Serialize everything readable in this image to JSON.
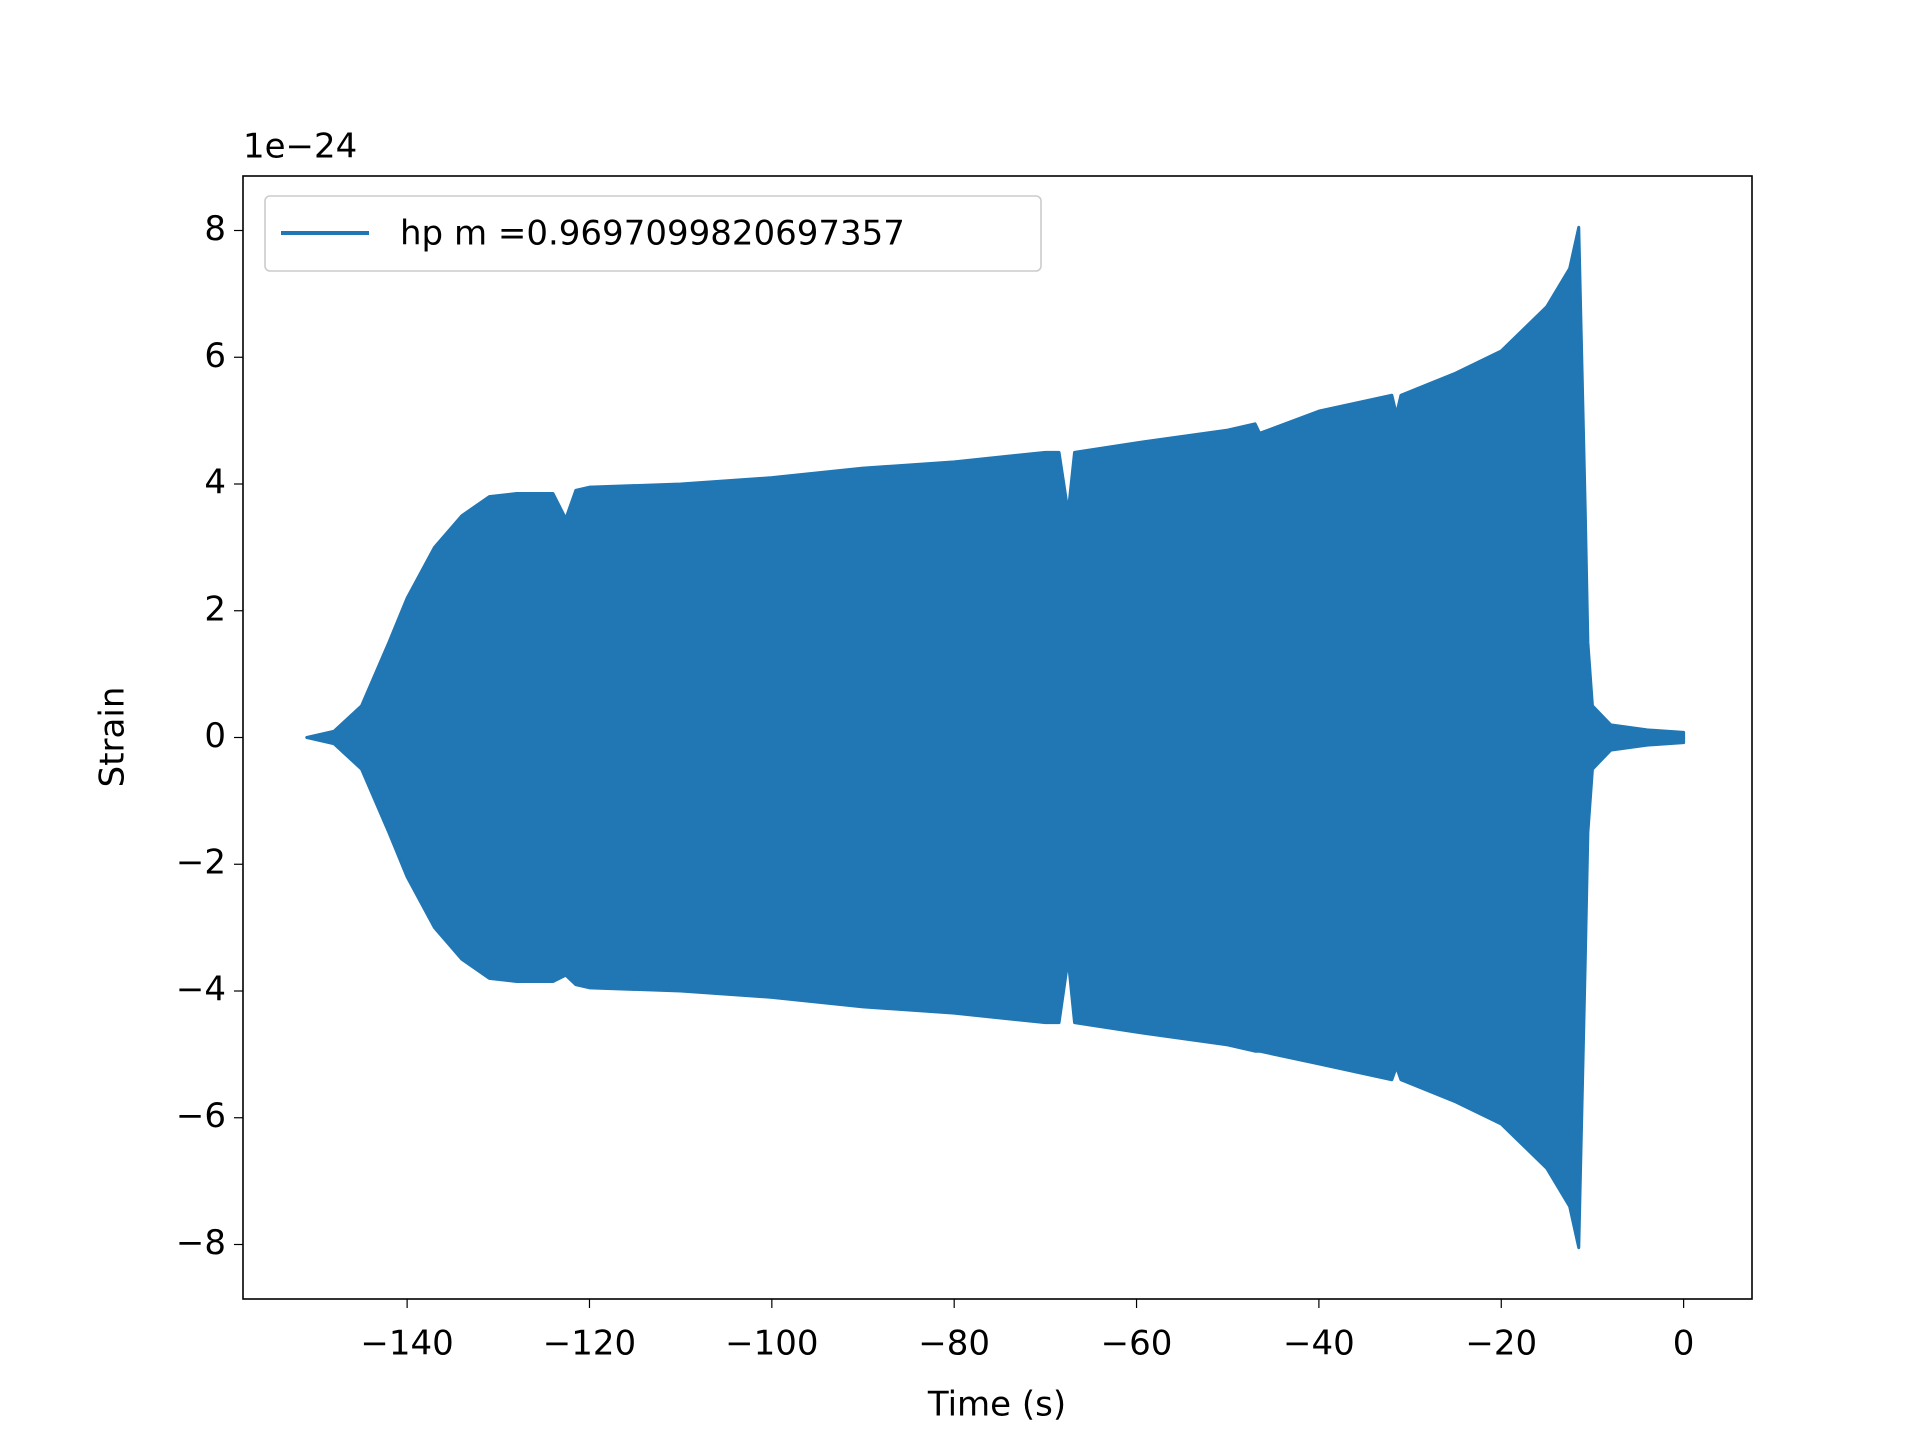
{
  "chart_data": {
    "type": "band",
    "xlabel": "Time (s)",
    "ylabel": "Strain",
    "offset_text": "1e−24",
    "legend": "upper left",
    "x": [
      -151,
      -148,
      -145,
      -142,
      -140,
      -137,
      -134,
      -131,
      -128,
      -124,
      -122.6,
      -121.5,
      -120,
      -110,
      -100,
      -90,
      -80,
      -70,
      -68.5,
      -67.5,
      -66.8,
      -60,
      -50,
      -47,
      -46.5,
      -40,
      -32,
      -31.5,
      -31,
      -25,
      -20,
      -15,
      -12.5,
      -11.5,
      -10.8,
      -10.5,
      -10,
      -8,
      -4,
      0
    ],
    "series": [
      {
        "name": "hp m =0.9697099820697357",
        "color": "#2077b4",
        "upper": [
          0,
          0.1,
          0.5,
          1.5,
          2.2,
          3.0,
          3.5,
          3.8,
          3.85,
          3.85,
          3.45,
          3.9,
          3.95,
          4.0,
          4.1,
          4.25,
          4.35,
          4.5,
          4.5,
          3.55,
          4.5,
          4.65,
          4.85,
          4.95,
          4.8,
          5.15,
          5.4,
          5.1,
          5.4,
          5.75,
          6.1,
          6.8,
          7.4,
          8.05,
          3.65,
          1.5,
          0.5,
          0.2,
          0.12,
          0.08
        ],
        "lower": [
          0,
          -0.1,
          -0.5,
          -1.5,
          -2.2,
          -3.0,
          -3.5,
          -3.8,
          -3.85,
          -3.85,
          -3.75,
          -3.9,
          -3.95,
          -4.0,
          -4.1,
          -4.25,
          -4.35,
          -4.5,
          -4.5,
          -3.5,
          -4.5,
          -4.65,
          -4.85,
          -4.95,
          -4.95,
          -5.15,
          -5.4,
          -5.2,
          -5.4,
          -5.75,
          -6.1,
          -6.8,
          -7.4,
          -8.05,
          -3.6,
          -1.5,
          -0.5,
          -0.2,
          -0.12,
          -0.08
        ]
      }
    ],
    "xlim": [
      -158.0,
      7.5
    ],
    "ylim": [
      -8.86,
      8.86
    ],
    "xticks": [
      {
        "value": -140,
        "label": "−140"
      },
      {
        "value": -120,
        "label": "−120"
      },
      {
        "value": -100,
        "label": "−100"
      },
      {
        "value": -80,
        "label": "−80"
      },
      {
        "value": -60,
        "label": "−60"
      },
      {
        "value": -40,
        "label": "−40"
      },
      {
        "value": -20,
        "label": "−20"
      },
      0
    ],
    "yticks": [
      {
        "value": -8,
        "label": "−8"
      },
      {
        "value": -6,
        "label": "−6"
      },
      {
        "value": -4,
        "label": "−4"
      },
      {
        "value": -2,
        "label": "−2"
      },
      0,
      2,
      4,
      6,
      8
    ]
  }
}
